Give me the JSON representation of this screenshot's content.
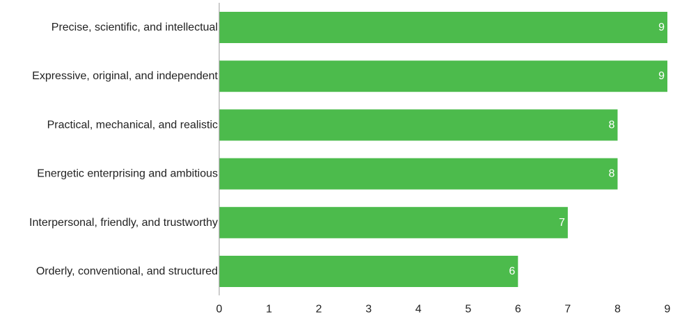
{
  "chart_data": {
    "type": "bar",
    "orientation": "horizontal",
    "categories": [
      "Precise, scientific, and intellectual",
      "Expressive, original, and independent",
      "Practical, mechanical, and realistic",
      "Energetic enterprising and ambitious",
      "Interpersonal, friendly, and trustworthy",
      "Orderly, conventional, and structured"
    ],
    "values": [
      9,
      9,
      8,
      8,
      7,
      6
    ],
    "x_ticks": [
      "0",
      "1",
      "2",
      "3",
      "4",
      "5",
      "6",
      "7",
      "8",
      "9"
    ],
    "xlim": [
      0,
      9
    ],
    "bar_color": "#4cbb4c",
    "data_label_color": "#ffffff",
    "text_color": "#222222",
    "axis_color": "#999999",
    "grid": false
  }
}
